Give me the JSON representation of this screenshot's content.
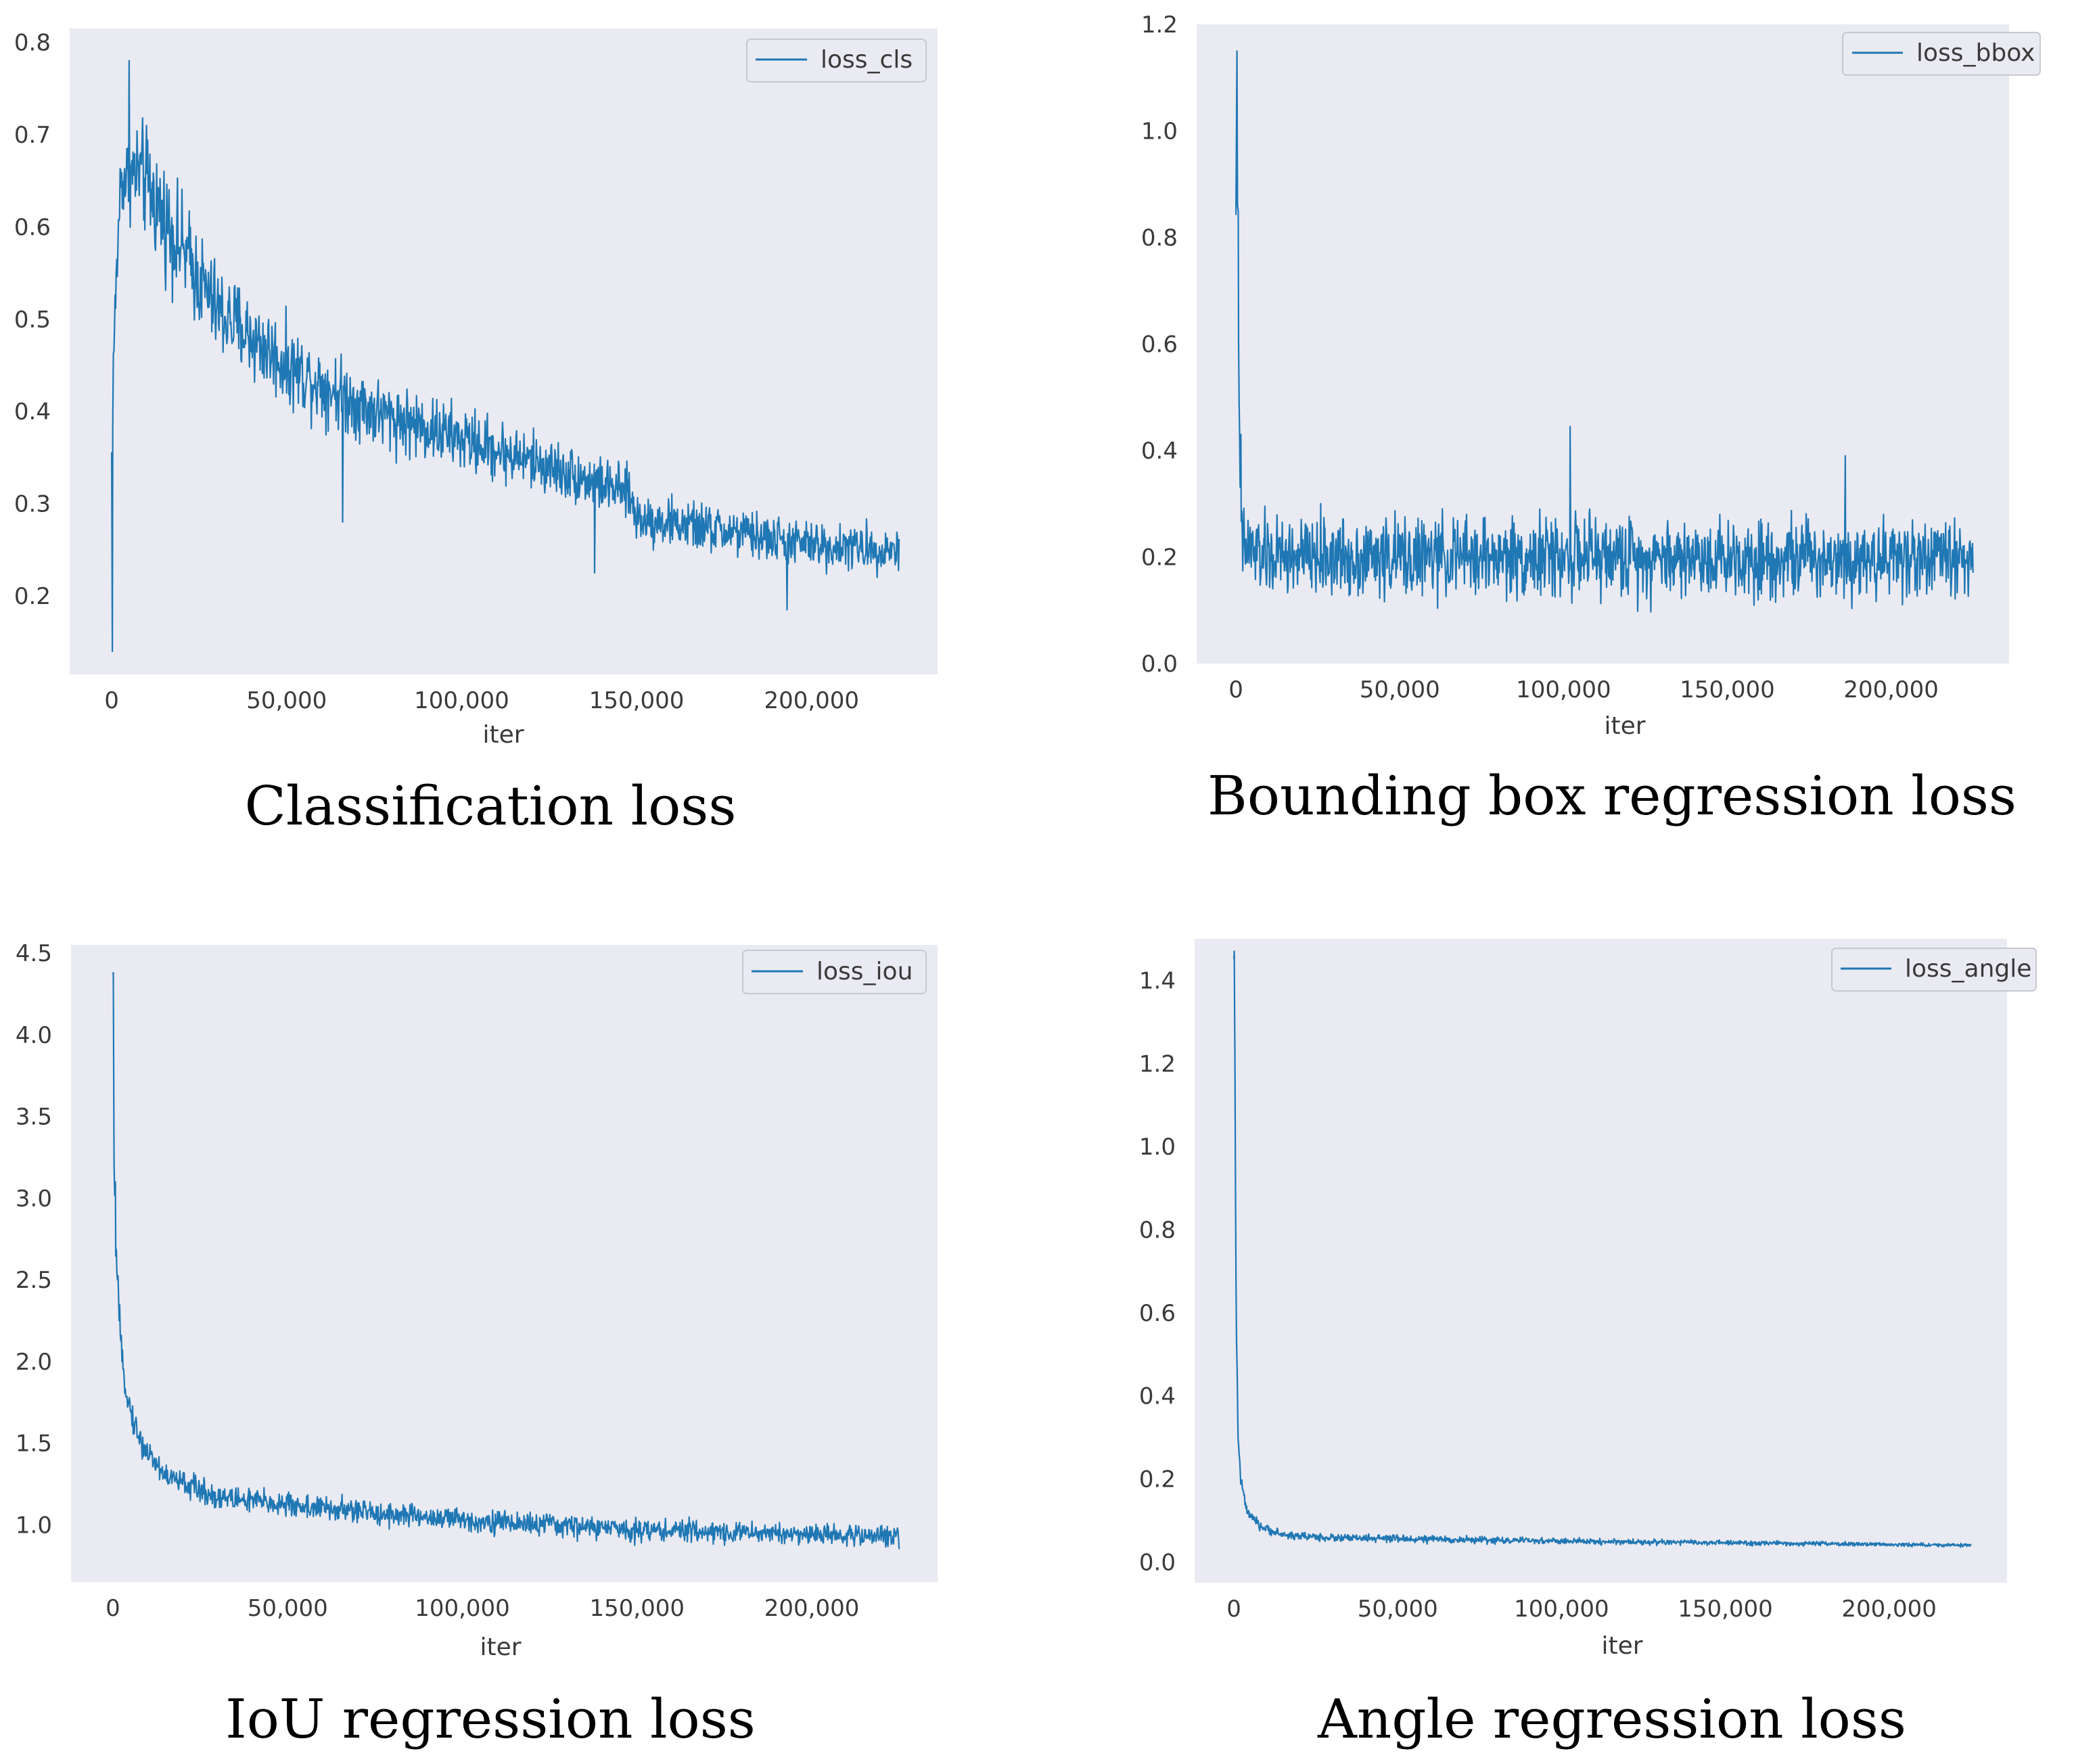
{
  "colors": {
    "line": "#1f77b4",
    "plot_background": "#eaeaf2"
  },
  "chart_data": [
    {
      "id": "cls",
      "type": "line",
      "caption": "Classification loss",
      "xlabel": "iter",
      "ylabel": "",
      "xlim": [
        -12000,
        236000
      ],
      "ylim": [
        0.115,
        0.815
      ],
      "grid": false,
      "legend": {
        "position": "top-right",
        "entries": [
          "loss_cls"
        ]
      },
      "x_ticks": [
        0,
        50000,
        100000,
        150000,
        200000
      ],
      "x_tick_labels": [
        "0",
        "50,000",
        "100,000",
        "150,000",
        "200,000"
      ],
      "y_ticks": [
        0.2,
        0.3,
        0.4,
        0.5,
        0.6,
        0.7,
        0.8
      ],
      "y_tick_labels": [
        "0.2",
        "0.3",
        "0.4",
        "0.5",
        "0.6",
        "0.7",
        "0.8"
      ],
      "series": [
        {
          "name": "loss_cls",
          "x_max": 225000,
          "trend": [
            [
              0,
              0.35
            ],
            [
              600,
              0.47
            ],
            [
              2500,
              0.65
            ],
            [
              8000,
              0.66
            ],
            [
              15000,
              0.61
            ],
            [
              30000,
              0.51
            ],
            [
              50000,
              0.45
            ],
            [
              75000,
              0.4
            ],
            [
              100000,
              0.37
            ],
            [
              125000,
              0.34
            ],
            [
              148000,
              0.31
            ],
            [
              150000,
              0.285
            ],
            [
              175000,
              0.27
            ],
            [
              200000,
              0.255
            ],
            [
              225000,
              0.25
            ]
          ],
          "noise": [
            [
              0,
              0.05
            ],
            [
              10000,
              0.09
            ],
            [
              30000,
              0.075
            ],
            [
              60000,
              0.06
            ],
            [
              150000,
              0.04
            ],
            [
              225000,
              0.035
            ]
          ],
          "spikes": [
            [
              200,
              0.14
            ],
            [
              5000,
              0.78
            ],
            [
              66000,
              0.28
            ],
            [
              138000,
              0.225
            ],
            [
              193000,
              0.185
            ]
          ]
        }
      ]
    },
    {
      "id": "bbox",
      "type": "line",
      "caption": "Bounding box regression loss",
      "xlabel": "iter",
      "ylabel": "",
      "xlim": [
        -12000,
        236000
      ],
      "ylim": [
        0.0,
        1.2
      ],
      "grid": false,
      "legend": {
        "position": "top-right",
        "entries": [
          "loss_bbox"
        ]
      },
      "x_ticks": [
        0,
        50000,
        100000,
        150000,
        200000
      ],
      "x_tick_labels": [
        "0",
        "50,000",
        "100,000",
        "150,000",
        "200,000"
      ],
      "y_ticks": [
        0.0,
        0.2,
        0.4,
        0.6,
        0.8,
        1.0,
        1.2
      ],
      "y_tick_labels": [
        "0.0",
        "0.2",
        "0.4",
        "0.6",
        "0.8",
        "1.0",
        "1.2"
      ],
      "series": [
        {
          "name": "loss_bbox",
          "x_max": 225000,
          "trend": [
            [
              0,
              0.9
            ],
            [
              400,
              1.0
            ],
            [
              900,
              0.45
            ],
            [
              1800,
              0.22
            ],
            [
              10000,
              0.2
            ],
            [
              225000,
              0.2
            ]
          ],
          "noise": [
            [
              0,
              0.15
            ],
            [
              3000,
              0.11
            ],
            [
              225000,
              0.11
            ]
          ],
          "spikes": [
            [
              300,
              1.15
            ],
            [
              700,
              0.85
            ],
            [
              1500,
              0.43
            ],
            [
              102000,
              0.445
            ],
            [
              186000,
              0.39
            ]
          ]
        }
      ]
    },
    {
      "id": "iou",
      "type": "line",
      "caption": "IoU regression loss",
      "xlabel": "iter",
      "ylabel": "",
      "xlim": [
        -12000,
        236000
      ],
      "ylim": [
        0.65,
        4.55
      ],
      "grid": false,
      "legend": {
        "position": "top-right",
        "entries": [
          "loss_iou"
        ]
      },
      "x_ticks": [
        0,
        50000,
        100000,
        150000,
        200000
      ],
      "x_tick_labels": [
        "0",
        "50,000",
        "100,000",
        "150,000",
        "200,000"
      ],
      "y_ticks": [
        1.0,
        1.5,
        2.0,
        2.5,
        3.0,
        3.5,
        4.0,
        4.5
      ],
      "y_tick_labels": [
        "1.0",
        "1.5",
        "2.0",
        "2.5",
        "3.0",
        "3.5",
        "4.0",
        "4.5"
      ],
      "series": [
        {
          "name": "loss_iou",
          "x_max": 225000,
          "trend": [
            [
              0,
              4.3
            ],
            [
              300,
              3.1
            ],
            [
              1000,
              2.6
            ],
            [
              2500,
              2.0
            ],
            [
              5000,
              1.7
            ],
            [
              8000,
              1.5
            ],
            [
              15000,
              1.3
            ],
            [
              30000,
              1.17
            ],
            [
              60000,
              1.1
            ],
            [
              100000,
              1.03
            ],
            [
              150000,
              0.97
            ],
            [
              225000,
              0.93
            ]
          ],
          "noise": [
            [
              0,
              0.15
            ],
            [
              8000,
              0.12
            ],
            [
              225000,
              0.09
            ]
          ],
          "spikes": [
            [
              100,
              4.38
            ],
            [
              700,
              3.1
            ]
          ]
        }
      ]
    },
    {
      "id": "angle",
      "type": "line",
      "caption": "Angle regression loss",
      "xlabel": "iter",
      "ylabel": "",
      "xlim": [
        -12000,
        236000
      ],
      "ylim": [
        -0.05,
        1.5
      ],
      "grid": false,
      "legend": {
        "position": "top-right",
        "entries": [
          "loss_angle"
        ]
      },
      "x_ticks": [
        0,
        50000,
        100000,
        150000,
        200000
      ],
      "x_tick_labels": [
        "0",
        "50,000",
        "100,000",
        "150,000",
        "200,000"
      ],
      "y_ticks": [
        0.0,
        0.2,
        0.4,
        0.6,
        0.8,
        1.0,
        1.2,
        1.4
      ],
      "y_tick_labels": [
        "0.0",
        "0.2",
        "0.4",
        "0.6",
        "0.8",
        "1.0",
        "1.2",
        "1.4"
      ],
      "series": [
        {
          "name": "loss_angle",
          "x_max": 225000,
          "trend": [
            [
              0,
              1.42
            ],
            [
              300,
              1.2
            ],
            [
              700,
              0.6
            ],
            [
              1200,
              0.32
            ],
            [
              2000,
              0.2
            ],
            [
              4000,
              0.12
            ],
            [
              8000,
              0.085
            ],
            [
              15000,
              0.065
            ],
            [
              30000,
              0.058
            ],
            [
              100000,
              0.05
            ],
            [
              225000,
              0.04
            ]
          ],
          "noise": [
            [
              0,
              0.05
            ],
            [
              4000,
              0.015
            ],
            [
              225000,
              0.006
            ]
          ],
          "spikes": [
            [
              100,
              1.47
            ]
          ]
        }
      ]
    }
  ]
}
